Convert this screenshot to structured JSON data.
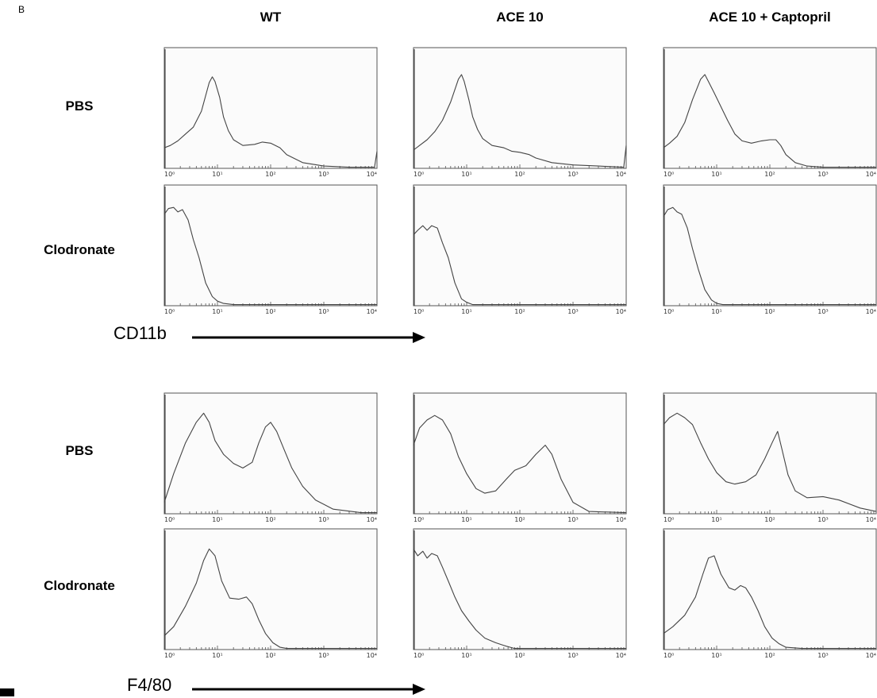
{
  "figure": {
    "panel_letter": "B",
    "column_headers": [
      "WT",
      "ACE 10",
      "ACE 10 + Captopril"
    ],
    "marker_labels": [
      "CD11b",
      "F4/80"
    ],
    "row_labels": [
      "PBS",
      "Clodronate",
      "PBS",
      "Clodronate"
    ]
  },
  "chart_data": [
    {
      "type": "line",
      "marker": "CD11b",
      "group": "WT",
      "treatment": "PBS",
      "xscale": "log",
      "xlim": [
        1,
        10000
      ],
      "x": [
        1,
        1.3,
        1.8,
        2.5,
        3.5,
        5,
        7,
        8,
        9,
        11,
        13,
        16,
        20,
        30,
        50,
        70,
        100,
        150,
        200,
        400,
        1000,
        3000,
        9000,
        10000
      ],
      "y": [
        0.18,
        0.2,
        0.24,
        0.3,
        0.36,
        0.5,
        0.75,
        0.8,
        0.76,
        0.62,
        0.45,
        0.33,
        0.25,
        0.2,
        0.21,
        0.23,
        0.22,
        0.18,
        0.12,
        0.05,
        0.02,
        0.01,
        0.01,
        0.15
      ]
    },
    {
      "type": "line",
      "marker": "CD11b",
      "group": "ACE 10",
      "treatment": "PBS",
      "xscale": "log",
      "xlim": [
        1,
        10000
      ],
      "x": [
        1,
        1.3,
        1.8,
        2.5,
        3.5,
        5,
        7,
        8,
        9,
        11,
        13,
        16,
        20,
        30,
        50,
        70,
        100,
        150,
        200,
        400,
        1000,
        3000,
        9000,
        10000
      ],
      "y": [
        0.16,
        0.2,
        0.25,
        0.32,
        0.42,
        0.58,
        0.78,
        0.82,
        0.76,
        0.6,
        0.45,
        0.34,
        0.26,
        0.2,
        0.18,
        0.15,
        0.14,
        0.12,
        0.09,
        0.05,
        0.03,
        0.02,
        0.01,
        0.2
      ]
    },
    {
      "type": "line",
      "marker": "CD11b",
      "group": "ACE 10 + Captopril",
      "treatment": "PBS",
      "xscale": "log",
      "xlim": [
        1,
        10000
      ],
      "x": [
        1,
        1.3,
        1.8,
        2.5,
        3.5,
        5,
        6,
        7,
        9,
        12,
        16,
        22,
        30,
        45,
        70,
        100,
        130,
        160,
        200,
        300,
        500,
        1000,
        10000
      ],
      "y": [
        0.18,
        0.22,
        0.28,
        0.4,
        0.6,
        0.78,
        0.82,
        0.76,
        0.66,
        0.54,
        0.42,
        0.3,
        0.24,
        0.22,
        0.24,
        0.25,
        0.25,
        0.2,
        0.12,
        0.05,
        0.02,
        0.01,
        0.01
      ]
    },
    {
      "type": "line",
      "marker": "CD11b",
      "group": "WT",
      "treatment": "Clodronate",
      "xscale": "log",
      "xlim": [
        1,
        10000
      ],
      "x": [
        1,
        1.2,
        1.5,
        1.8,
        2.2,
        2.8,
        3.5,
        4.5,
        6,
        8,
        10,
        13,
        20,
        40,
        100,
        10000
      ],
      "y": [
        0.8,
        0.85,
        0.86,
        0.82,
        0.84,
        0.75,
        0.58,
        0.42,
        0.2,
        0.08,
        0.04,
        0.02,
        0.01,
        0.01,
        0.01,
        0.01
      ]
    },
    {
      "type": "line",
      "marker": "CD11b",
      "group": "ACE 10",
      "treatment": "Clodronate",
      "xscale": "log",
      "xlim": [
        1,
        10000
      ],
      "x": [
        1,
        1.2,
        1.5,
        1.8,
        2.2,
        2.8,
        3.5,
        4.5,
        6,
        8,
        10,
        13,
        20,
        40,
        100,
        10000
      ],
      "y": [
        0.62,
        0.66,
        0.7,
        0.66,
        0.7,
        0.68,
        0.55,
        0.42,
        0.2,
        0.06,
        0.03,
        0.01,
        0.01,
        0.01,
        0.01,
        0.01
      ]
    },
    {
      "type": "line",
      "marker": "CD11b",
      "group": "ACE 10 + Captopril",
      "treatment": "Clodronate",
      "xscale": "log",
      "xlim": [
        1,
        10000
      ],
      "x": [
        1,
        1.2,
        1.5,
        1.8,
        2.2,
        2.8,
        3.5,
        4.5,
        6,
        8,
        10,
        13,
        20,
        40,
        100,
        10000
      ],
      "y": [
        0.78,
        0.84,
        0.86,
        0.82,
        0.8,
        0.68,
        0.5,
        0.32,
        0.14,
        0.05,
        0.02,
        0.01,
        0.01,
        0.01,
        0.01,
        0.01
      ]
    },
    {
      "type": "line",
      "marker": "F4/80",
      "group": "WT",
      "treatment": "PBS",
      "xscale": "log",
      "xlim": [
        1,
        10000
      ],
      "x": [
        1,
        1.5,
        2.5,
        4,
        5.5,
        7,
        9,
        13,
        20,
        30,
        45,
        60,
        80,
        100,
        130,
        180,
        250,
        400,
        700,
        1500,
        5000,
        10000
      ],
      "y": [
        0.1,
        0.35,
        0.62,
        0.8,
        0.88,
        0.8,
        0.64,
        0.52,
        0.44,
        0.4,
        0.45,
        0.62,
        0.76,
        0.8,
        0.72,
        0.56,
        0.4,
        0.24,
        0.12,
        0.04,
        0.01,
        0.01
      ]
    },
    {
      "type": "line",
      "marker": "F4/80",
      "group": "ACE 10",
      "treatment": "PBS",
      "xscale": "log",
      "xlim": [
        1,
        10000
      ],
      "x": [
        1,
        1.3,
        1.8,
        2.5,
        3.5,
        5,
        7,
        10,
        15,
        22,
        35,
        55,
        80,
        130,
        200,
        300,
        400,
        600,
        1000,
        2000,
        10000
      ],
      "y": [
        0.6,
        0.75,
        0.82,
        0.86,
        0.82,
        0.7,
        0.5,
        0.35,
        0.22,
        0.18,
        0.2,
        0.3,
        0.38,
        0.42,
        0.52,
        0.6,
        0.52,
        0.3,
        0.1,
        0.02,
        0.01
      ]
    },
    {
      "type": "line",
      "marker": "F4/80",
      "group": "ACE 10 + Captopril",
      "treatment": "PBS",
      "xscale": "log",
      "xlim": [
        1,
        10000
      ],
      "x": [
        1,
        1.3,
        1.8,
        2.5,
        3.5,
        5,
        7,
        10,
        15,
        22,
        35,
        55,
        80,
        110,
        140,
        170,
        220,
        300,
        500,
        1000,
        2000,
        5000,
        10000
      ],
      "y": [
        0.78,
        0.84,
        0.88,
        0.84,
        0.78,
        0.62,
        0.48,
        0.36,
        0.28,
        0.26,
        0.28,
        0.34,
        0.48,
        0.62,
        0.72,
        0.56,
        0.34,
        0.2,
        0.14,
        0.15,
        0.12,
        0.05,
        0.02
      ]
    },
    {
      "type": "line",
      "marker": "F4/80",
      "group": "WT",
      "treatment": "Clodronate",
      "xscale": "log",
      "xlim": [
        1,
        10000
      ],
      "x": [
        1,
        1.5,
        2.5,
        4,
        5.5,
        7,
        9,
        12,
        17,
        25,
        35,
        45,
        60,
        80,
        110,
        150,
        200,
        300,
        1000,
        10000
      ],
      "y": [
        0.12,
        0.2,
        0.38,
        0.58,
        0.78,
        0.88,
        0.82,
        0.6,
        0.45,
        0.44,
        0.46,
        0.4,
        0.26,
        0.14,
        0.06,
        0.02,
        0.01,
        0.01,
        0.01,
        0.01
      ]
    },
    {
      "type": "line",
      "marker": "F4/80",
      "group": "ACE 10",
      "treatment": "Clodronate",
      "xscale": "log",
      "xlim": [
        1,
        10000
      ],
      "x": [
        1,
        1.2,
        1.5,
        1.8,
        2.2,
        2.8,
        3.5,
        4.5,
        6,
        8,
        11,
        15,
        22,
        35,
        55,
        80,
        100,
        10000
      ],
      "y": [
        0.88,
        0.82,
        0.86,
        0.8,
        0.84,
        0.82,
        0.72,
        0.6,
        0.46,
        0.34,
        0.25,
        0.17,
        0.1,
        0.06,
        0.03,
        0.01,
        0.01,
        0.01
      ]
    },
    {
      "type": "line",
      "marker": "F4/80",
      "group": "ACE 10 + Captopril",
      "treatment": "Clodronate",
      "xscale": "log",
      "xlim": [
        1,
        10000
      ],
      "x": [
        1,
        1.5,
        2.5,
        4,
        5.5,
        7,
        9,
        12,
        17,
        22,
        28,
        35,
        45,
        60,
        80,
        110,
        150,
        200,
        400,
        1000,
        10000
      ],
      "y": [
        0.14,
        0.2,
        0.3,
        0.46,
        0.66,
        0.8,
        0.82,
        0.66,
        0.54,
        0.52,
        0.56,
        0.54,
        0.46,
        0.34,
        0.2,
        0.1,
        0.05,
        0.02,
        0.01,
        0.01,
        0.01
      ]
    }
  ]
}
